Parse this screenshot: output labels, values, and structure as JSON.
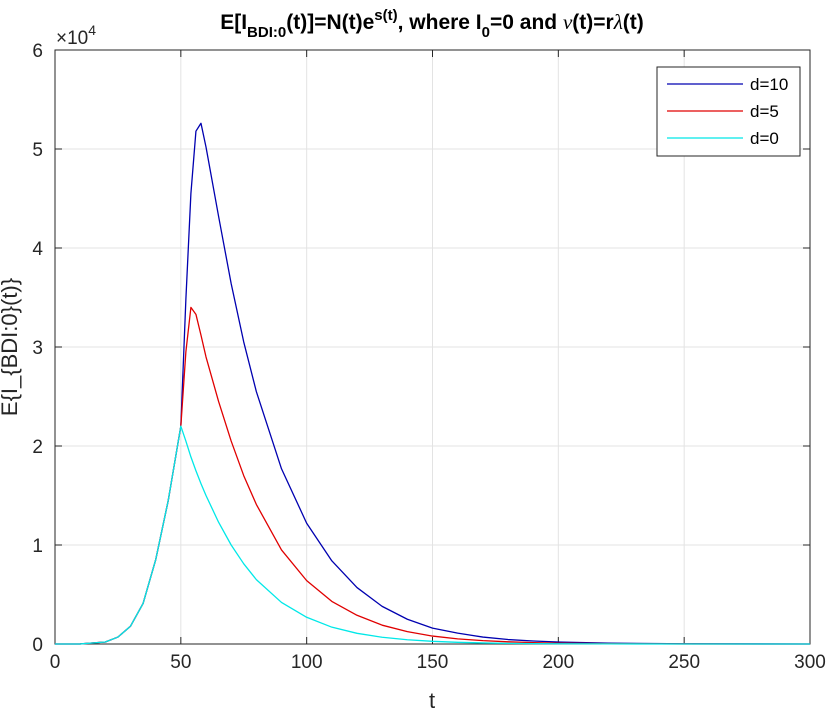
{
  "chart_data": {
    "type": "line",
    "title": {
      "p1": "E[I",
      "p1_sub": "BDI:0",
      "p2": "(t)]=N(t)e",
      "p2_sup": "s(t)",
      "p3": ", where I",
      "p3_sub": "0",
      "p4": "=0 and ",
      "p4_nu": "ν",
      "p5": "(t)=r",
      "p5_lambda": "λ",
      "p6": "(t)"
    },
    "xlabel": "t",
    "ylabel": "E{I_{BDI:0}(t)}",
    "xlim": [
      0,
      300
    ],
    "ylim": [
      0,
      60000
    ],
    "x_ticks": [
      "0",
      "50",
      "100",
      "150",
      "200",
      "250",
      "300"
    ],
    "y_ticks": [
      "0",
      "1",
      "2",
      "3",
      "4",
      "5",
      "6"
    ],
    "y_multiplier": {
      "base": "×10",
      "exp": "4"
    },
    "grid": true,
    "legend_position": "top-right",
    "x": [
      0,
      10,
      20,
      25,
      30,
      35,
      40,
      45,
      50,
      52,
      54,
      56,
      58,
      60,
      65,
      70,
      75,
      80,
      90,
      100,
      110,
      120,
      130,
      140,
      150,
      160,
      170,
      180,
      190,
      200,
      220,
      250,
      300
    ],
    "series": [
      {
        "name": "d=10",
        "color": "#0000b0",
        "values": [
          0,
          5,
          200,
          700,
          1800,
          4100,
          8500,
          14500,
          22000,
          34800,
          45500,
          51800,
          52600,
          50200,
          43200,
          36400,
          30500,
          25500,
          17700,
          12200,
          8400,
          5700,
          3800,
          2500,
          1600,
          1100,
          700,
          450,
          300,
          200,
          80,
          20,
          0
        ]
      },
      {
        "name": "d=5",
        "color": "#e00000",
        "values": [
          0,
          5,
          200,
          700,
          1800,
          4100,
          8500,
          14500,
          22000,
          29500,
          34000,
          33300,
          31200,
          29000,
          24500,
          20500,
          17000,
          14100,
          9500,
          6400,
          4300,
          2900,
          1900,
          1250,
          800,
          520,
          340,
          220,
          140,
          90,
          35,
          8,
          0
        ]
      },
      {
        "name": "d=0",
        "color": "#00e8e8",
        "values": [
          0,
          5,
          200,
          700,
          1800,
          4100,
          8500,
          14500,
          22000,
          20500,
          18900,
          17500,
          16200,
          15000,
          12300,
          10000,
          8100,
          6500,
          4200,
          2700,
          1700,
          1080,
          680,
          430,
          270,
          170,
          105,
          65,
          40,
          25,
          10,
          2,
          0
        ]
      }
    ]
  }
}
